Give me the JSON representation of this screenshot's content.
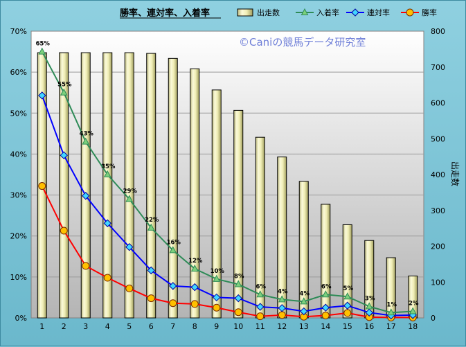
{
  "chart_data": {
    "type": "bar",
    "title": "勝率、連対率、入着率",
    "watermark": "©Caniの競馬データ研究室",
    "categories": [
      "1",
      "2",
      "3",
      "4",
      "5",
      "6",
      "7",
      "8",
      "9",
      "10",
      "11",
      "12",
      "13",
      "14",
      "15",
      "16",
      "17",
      "18"
    ],
    "ylabel": "",
    "y2label": "出走数",
    "ylim": [
      0,
      70
    ],
    "y2lim": [
      0,
      800
    ],
    "yticks": [
      "0%",
      "10%",
      "20%",
      "30%",
      "40%",
      "50%",
      "60%",
      "70%"
    ],
    "y2ticks": [
      "0",
      "100",
      "200",
      "300",
      "400",
      "500",
      "600",
      "700",
      "800"
    ],
    "legend_position": "top",
    "grid": true,
    "series": [
      {
        "name": "出走数",
        "kind": "bar",
        "axis": "right",
        "color": "#e9e6a8",
        "values": [
          740,
          740,
          740,
          740,
          740,
          738,
          724,
          695,
          636,
          579,
          504,
          449,
          381,
          317,
          260,
          216,
          168,
          117
        ]
      },
      {
        "name": "入着率",
        "kind": "line",
        "axis": "left",
        "color": "#2e8b57",
        "marker": "triangle",
        "values": [
          65,
          55,
          43,
          35,
          29,
          22,
          16.5,
          12,
          9.5,
          8.2,
          5.7,
          4.5,
          4,
          5.7,
          5.2,
          2.8,
          1.3,
          1.6
        ],
        "labels": [
          "65%",
          "55%",
          "43%",
          "35%",
          "29%",
          "22%",
          "16%",
          "12%",
          "10%",
          "8%",
          "6%",
          "4%",
          "4%",
          "6%",
          "5%",
          "3%",
          "1%",
          "2%"
        ]
      },
      {
        "name": "連対率",
        "kind": "line",
        "axis": "left",
        "color": "#0000ff",
        "marker": "diamond",
        "values": [
          54.3,
          39.7,
          29.8,
          23.1,
          17.3,
          11.6,
          7.8,
          7.5,
          5.0,
          4.8,
          2.7,
          2.4,
          1.6,
          2.5,
          3.0,
          1.3,
          0.6,
          0.7
        ]
      },
      {
        "name": "勝率",
        "kind": "line",
        "axis": "left",
        "color": "#ff0000",
        "marker": "circle",
        "values": [
          32.2,
          21.3,
          12.7,
          9.8,
          7.2,
          4.8,
          3.6,
          3.4,
          2.5,
          1.4,
          0.4,
          0.7,
          0.3,
          0.6,
          1.2,
          0.2,
          0.1,
          0.1
        ]
      }
    ]
  }
}
